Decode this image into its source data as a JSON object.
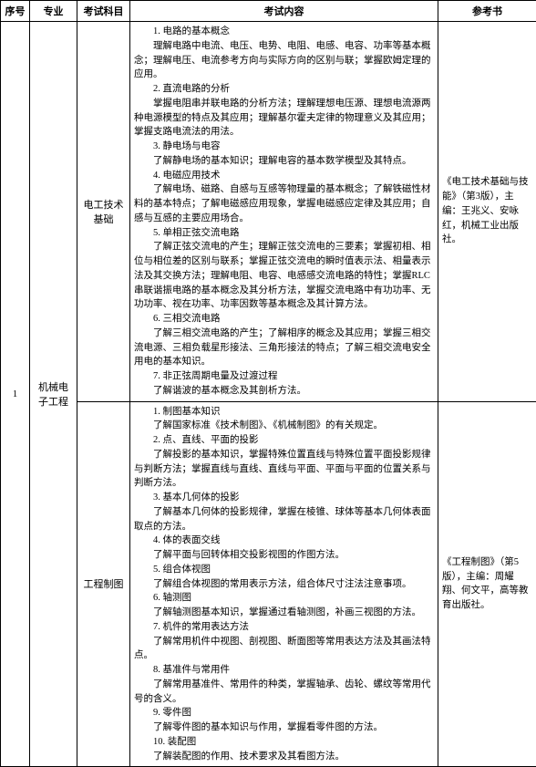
{
  "headers": {
    "col1": "序号",
    "col2": "专业",
    "col3": "考试科目",
    "col4": "考试内容",
    "col5": "参考书"
  },
  "row_index": "1",
  "major": "机械电子工程",
  "subjects": {
    "s1": {
      "name": "电工技术基础",
      "content_lines": [
        "1. 电路的基本概念",
        "理解电路中电流、电压、电势、电阻、电感、电容、功率等基本概念；理解电压、电流参考方向与实际方向的区别与联；掌握欧姆定理的应用。",
        "2. 直流电路的分析",
        "掌握电阻串并联电路的分析方法；理解理想电压源、理想电流源两种电源模型的特点及其应用；理解基尔霍夫定律的物理意义及其应用；掌握支路电流法的用法。",
        "3. 静电场与电容",
        "了解静电场的基本知识；理解电容的基本数学模型及其特点。",
        "4. 电磁应用技术",
        "了解电场、磁路、自感与互感等物理量的基本概念；了解铁磁性材料的基本特点；了解电磁感应用现象，掌握电磁感应定律及其应用；自感与互感的主要应用场合。",
        "5. 单相正弦交流电路",
        "了解正弦交流电的产生；理解正弦交流电的三要素；掌握初相、相位与相位差的区别与联系；掌握正弦交流电的瞬时值表示法、相量表示法及其交换方法；理解电阻、电容、电感感交流电路的特性；掌握RLC串联谐振电路的基本概念及其分析方法，掌握交流电路中有功功率、无功功率、视在功率、功率因数等基本概念及其计算方法。",
        "6. 三相交流电路",
        "了解三相交流电路的产生；了解相序的概念及其应用；掌握三相交流电源、三相负载星形接法、三角形接法的特点；了解三相交流电安全用电的基本知识。",
        "7. 非正弦周期电量及过渡过程",
        "了解谐波的基本概念及其剖析方法。"
      ],
      "reference": "《电工技术基础与技能》（第3版），主编：王兆义、安咏红，机械工业出版社。"
    },
    "s2": {
      "name": "工程制图",
      "content_lines": [
        "1. 制图基本知识",
        "了解国家标准《技术制图》、《机械制图》的有关规定。",
        "2. 点、直线、平面的投影",
        "了解投影的基本知识，掌握特殊位置直线与特殊位置平面投影规律与判断方法；掌握直线与直线、直线与平面、平面与平面的位置关系与判断方法。",
        "3. 基本几何体的投影",
        "了解基本几何体的投影规律，掌握在棱锥、球体等基本几何体表面取点的方法。",
        "4. 体的表面交线",
        "了解平面与回转体相交投影视图的作图方法。",
        "5. 组合体视图",
        "了解组合体视图的常用表示方法，组合体尺寸注法注意事项。",
        "6. 轴测图",
        "了解轴测图基本知识，掌握通过看轴测图，补画三视图的方法。",
        "7. 机件的常用表达方法",
        "了解常用机件中视图、剖视图、断面图等常用表达方法及其画法特点。",
        "8. 基准件与常用件",
        "了解常用基准件、常用件的种类，掌握轴承、齿轮、螺纹等常用代号的含义。",
        "9. 零件图",
        "了解零件图的基本知识与作用，掌握看零件图的方法。",
        "10. 装配图",
        "了解装配图的作用、技术要求及其看图方法。"
      ],
      "reference": "《工程制图》（第5版），主编：周耀翔、何文平，高等教育出版社。"
    }
  }
}
